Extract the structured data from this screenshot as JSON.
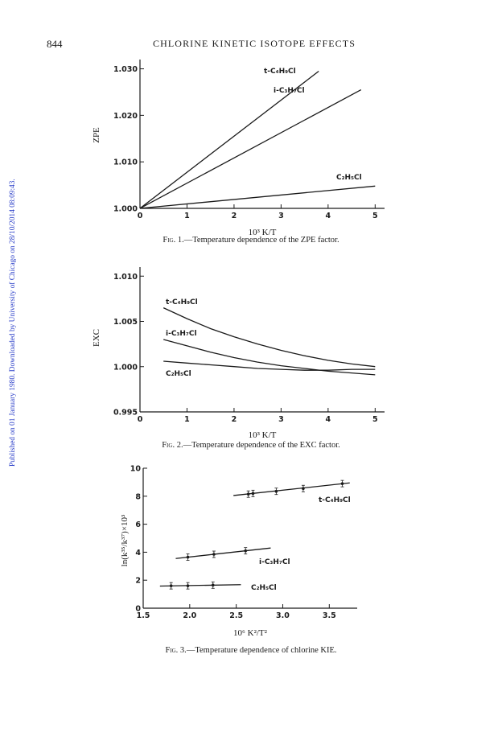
{
  "header": {
    "page_number": "844",
    "running_head": "CHLORINE KINETIC ISOTOPE EFFECTS"
  },
  "side_note": "Published on 01 January 1980. Downloaded by University of Chicago on 28/10/2014 08:09:43.",
  "chart_data": [
    {
      "type": "line",
      "caption_label": "Fig. 1.",
      "caption_text": "—Temperature dependence of the ZPE factor.",
      "xlabel": "10³ K/T",
      "ylabel": "ZPE",
      "xlim": [
        0,
        5.2
      ],
      "ylim": [
        1.0,
        1.032
      ],
      "xticks": [
        "0",
        "1",
        "2",
        "3",
        "4",
        "5"
      ],
      "xtick_values": [
        0,
        1,
        2,
        3,
        4,
        5
      ],
      "yticks": [
        "1.000",
        "1.010",
        "1.020",
        "1.030"
      ],
      "ytick_values": [
        1.0,
        1.01,
        1.02,
        1.03
      ],
      "series": [
        {
          "name": "t-C₄H₉Cl",
          "x": [
            0,
            3.8
          ],
          "y": [
            1.0,
            1.0295
          ]
        },
        {
          "name": "i-C₃H₇Cl",
          "x": [
            0,
            4.7
          ],
          "y": [
            1.0,
            1.0255
          ]
        },
        {
          "name": "C₂H₅Cl",
          "x": [
            0,
            5.0
          ],
          "y": [
            1.0,
            1.0048
          ]
        }
      ]
    },
    {
      "type": "line",
      "caption_label": "Fig. 2.",
      "caption_text": "—Temperature dependence of the EXC factor.",
      "xlabel": "10³ K/T",
      "ylabel": "EXC",
      "xlim": [
        0,
        5.2
      ],
      "ylim": [
        0.995,
        1.011
      ],
      "xticks": [
        "0",
        "1",
        "2",
        "3",
        "4",
        "5"
      ],
      "xtick_values": [
        0,
        1,
        2,
        3,
        4,
        5
      ],
      "yticks": [
        "0.995",
        "1.000",
        "1.005",
        "1.010"
      ],
      "ytick_values": [
        0.995,
        1.0,
        1.005,
        1.01
      ],
      "series": [
        {
          "name": "t-C₄H₉Cl",
          "x": [
            0.5,
            1,
            1.5,
            2,
            2.5,
            3,
            3.5,
            4,
            4.5,
            5
          ],
          "y": [
            1.0065,
            1.0053,
            1.0042,
            1.0033,
            1.0025,
            1.0018,
            1.0012,
            1.0007,
            1.0003,
            1.0
          ]
        },
        {
          "name": "i-C₃H₇Cl",
          "x": [
            0.5,
            1,
            1.5,
            2,
            2.5,
            3,
            3.5,
            4,
            4.5,
            5
          ],
          "y": [
            1.003,
            1.0023,
            1.0016,
            1.001,
            1.0005,
            1.0001,
            0.9998,
            0.9995,
            0.9993,
            0.9991
          ]
        },
        {
          "name": "C₂H₅Cl",
          "x": [
            0.5,
            1,
            1.5,
            2,
            2.5,
            3,
            3.5,
            4,
            4.5,
            5
          ],
          "y": [
            1.0006,
            1.0004,
            1.0002,
            1.0,
            0.9998,
            0.9997,
            0.9996,
            0.9996,
            0.9997,
            0.9997
          ]
        }
      ]
    },
    {
      "type": "scatter",
      "caption_label": "Fig. 3.",
      "caption_text": "—Temperature dependence of chlorine KIE.",
      "xlabel": "10⁶ K²/T²",
      "ylabel": "ln(k³⁵/k³⁷)×10³",
      "xlim": [
        1.5,
        3.8
      ],
      "ylim": [
        0,
        10
      ],
      "xticks": [
        "1.5",
        "2.0",
        "2.5",
        "3.0",
        "3.5"
      ],
      "xtick_values": [
        1.5,
        2.0,
        2.5,
        3.0,
        3.5
      ],
      "yticks": [
        "0",
        "2",
        "4",
        "6",
        "8",
        "10"
      ],
      "ytick_values": [
        0,
        2,
        4,
        6,
        8,
        10
      ],
      "series": [
        {
          "name": "t-C₄H₉Cl",
          "points_x": [
            2.63,
            2.68,
            2.93,
            3.22,
            3.64
          ],
          "points_y": [
            8.15,
            8.2,
            8.35,
            8.55,
            8.9
          ],
          "fit_x": [
            2.47,
            3.72
          ],
          "fit_y": [
            8.05,
            8.95
          ]
        },
        {
          "name": "i-C₃H₇Cl",
          "points_x": [
            1.98,
            2.26,
            2.6
          ],
          "points_y": [
            3.65,
            3.85,
            4.1
          ],
          "fit_x": [
            1.85,
            2.87
          ],
          "fit_y": [
            3.55,
            4.3
          ]
        },
        {
          "name": "C₂H₅Cl",
          "points_x": [
            1.8,
            1.98,
            2.25
          ],
          "points_y": [
            1.6,
            1.6,
            1.65
          ],
          "fit_x": [
            1.68,
            2.55
          ],
          "fit_y": [
            1.58,
            1.68
          ]
        }
      ]
    }
  ]
}
